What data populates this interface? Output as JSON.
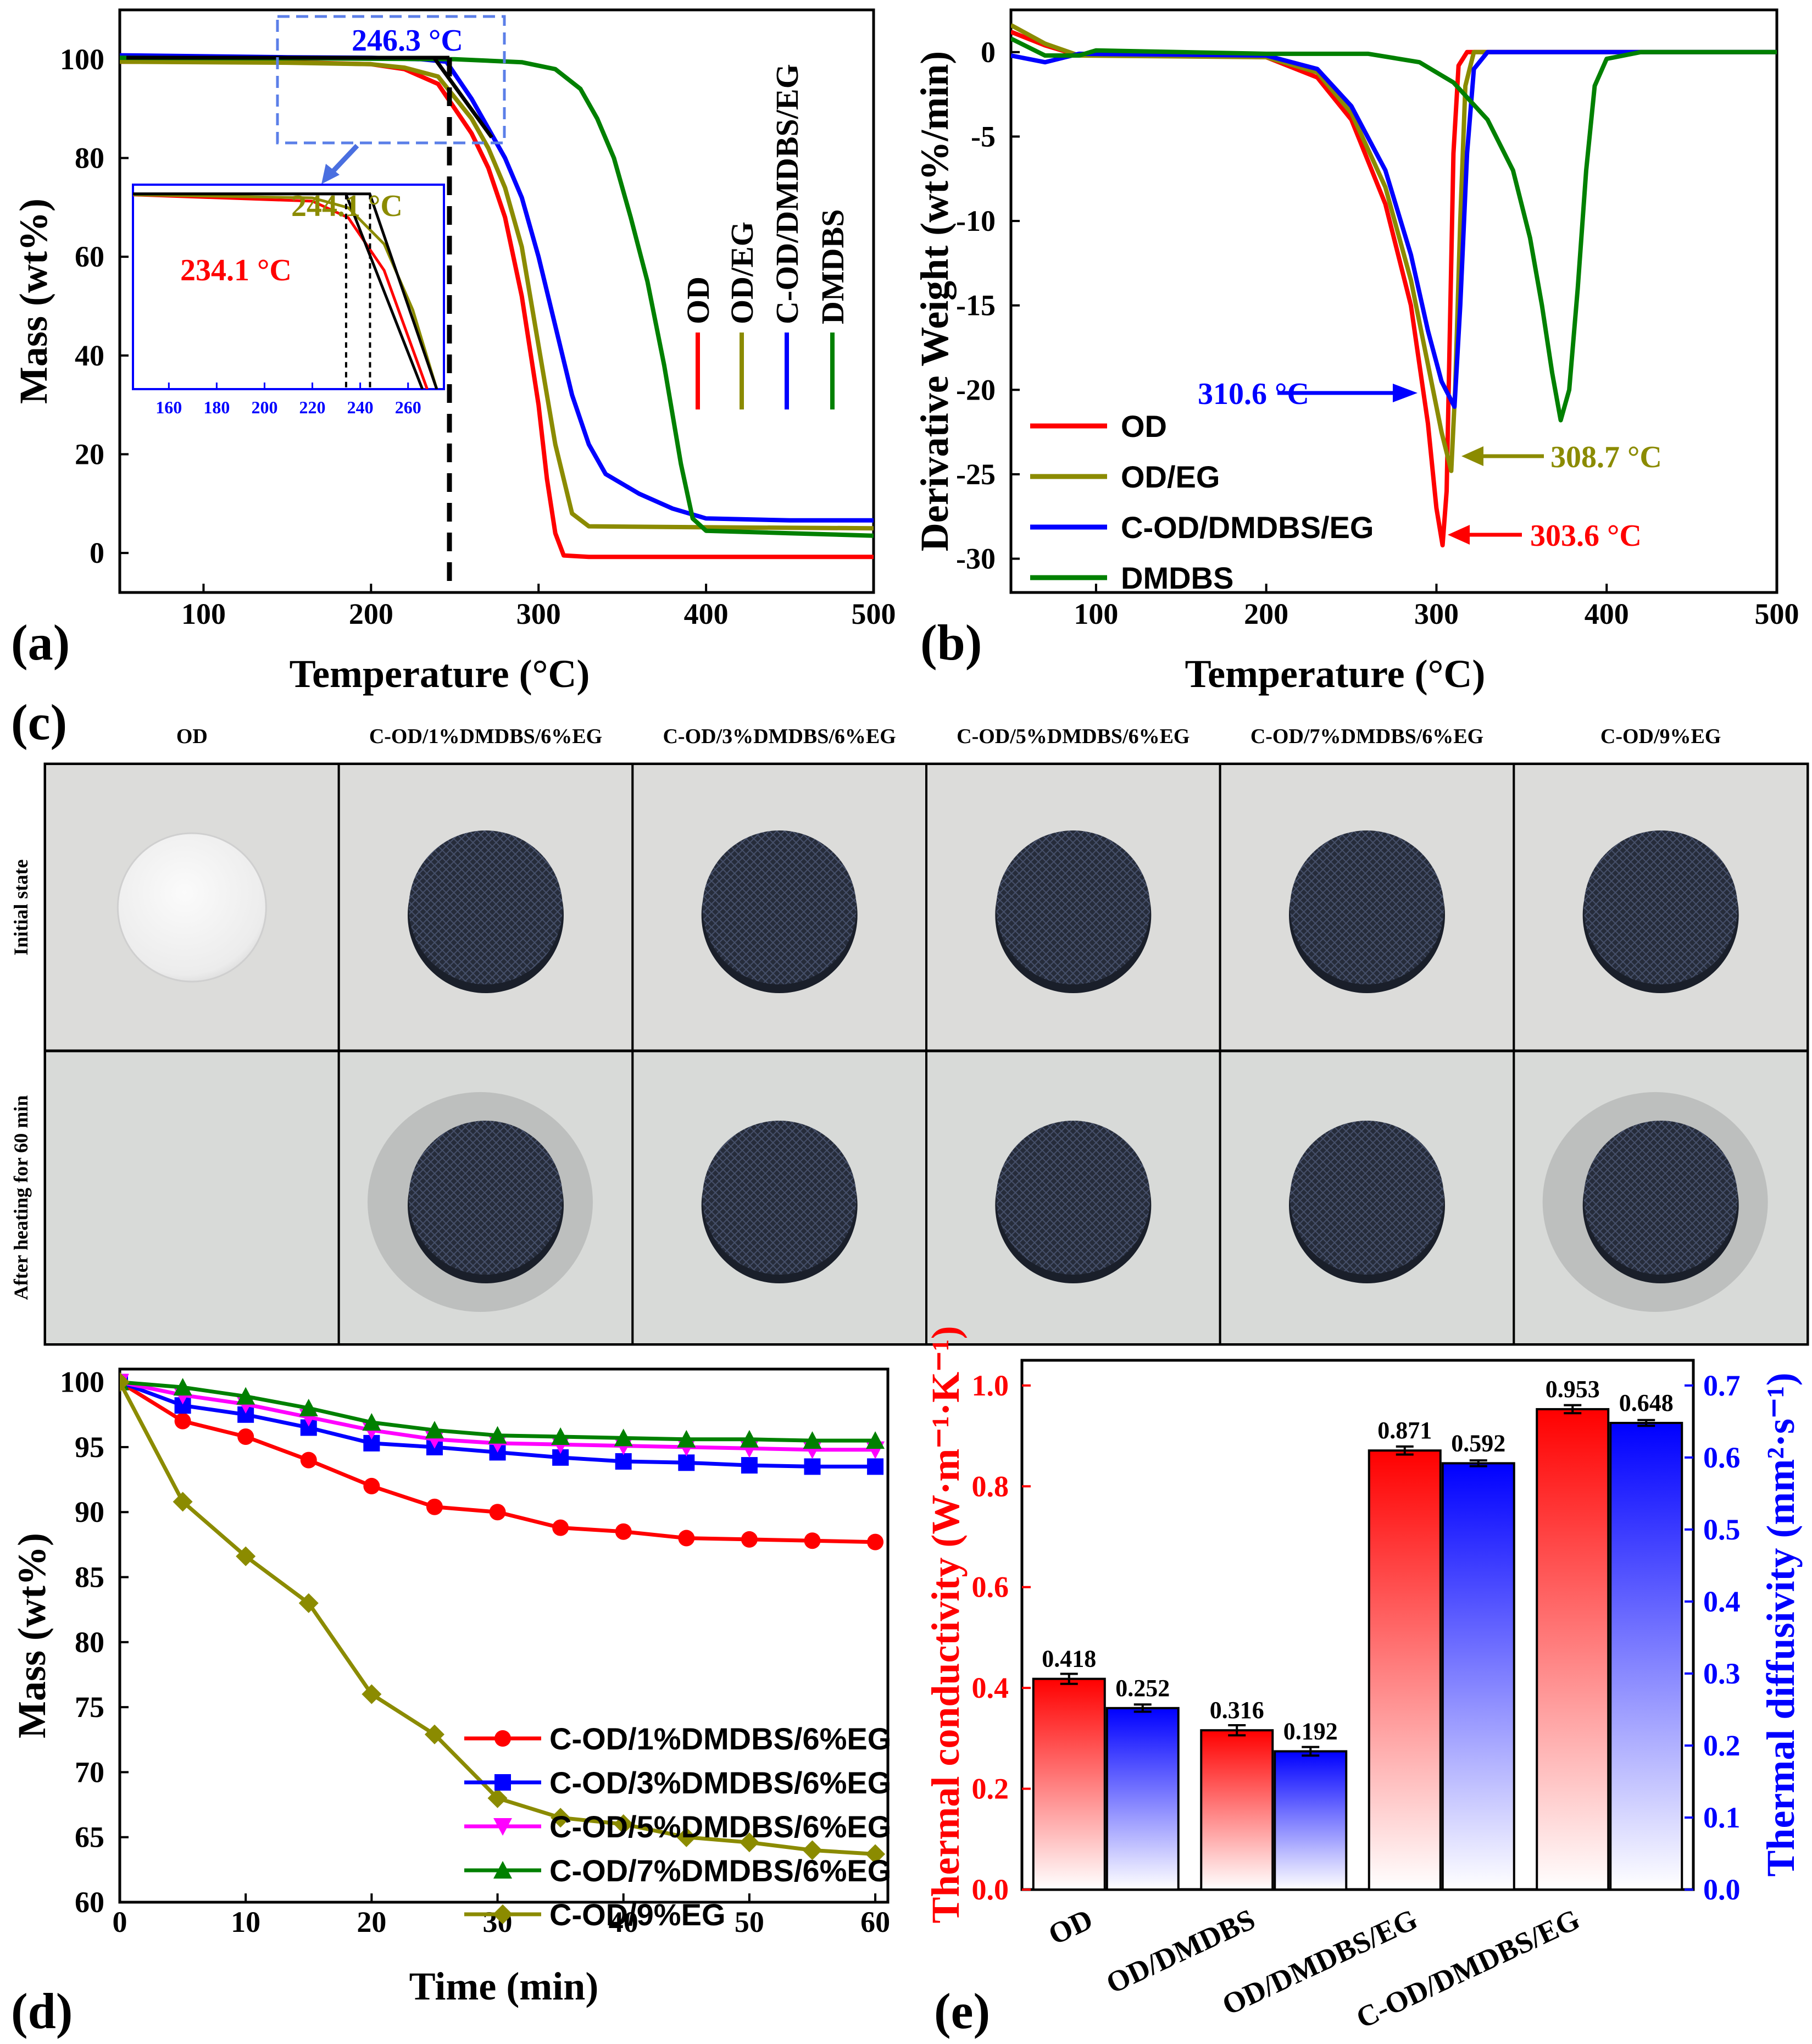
{
  "panels": {
    "a": {
      "letter": "(a)",
      "chart_data": {
        "type": "line",
        "xlabel": "Temperature (°C)",
        "ylabel": "Mass (wt%)",
        "xlim": [
          50,
          500
        ],
        "ylim": [
          -8,
          110
        ],
        "xticks": [
          100,
          200,
          300,
          400,
          500
        ],
        "yticks": [
          0,
          20,
          40,
          60,
          80,
          100
        ],
        "legend_placement": "right, rotated vertical",
        "series": [
          {
            "name": "OD",
            "color": "#ff0000",
            "points": [
              [
                50,
                99.5
              ],
              [
                150,
                99.4
              ],
              [
                200,
                99
              ],
              [
                220,
                98
              ],
              [
                240,
                95
              ],
              [
                260,
                85
              ],
              [
                270,
                78
              ],
              [
                280,
                68
              ],
              [
                290,
                52
              ],
              [
                300,
                30
              ],
              [
                305,
                15
              ],
              [
                310,
                4
              ],
              [
                315,
                -0.5
              ],
              [
                330,
                -0.8
              ],
              [
                400,
                -0.8
              ],
              [
                500,
                -0.8
              ]
            ]
          },
          {
            "name": "OD/EG",
            "color": "#8b8b00",
            "points": [
              [
                50,
                99.5
              ],
              [
                150,
                99.3
              ],
              [
                200,
                99
              ],
              [
                220,
                98.3
              ],
              [
                240,
                96.5
              ],
              [
                260,
                88
              ],
              [
                270,
                82
              ],
              [
                280,
                74
              ],
              [
                290,
                62
              ],
              [
                300,
                42
              ],
              [
                310,
                22
              ],
              [
                320,
                8
              ],
              [
                330,
                5.4
              ],
              [
                400,
                5.2
              ],
              [
                500,
                5
              ]
            ]
          },
          {
            "name": "C-OD/DMDBS/EG",
            "color": "#0000ff",
            "points": [
              [
                50,
                100.8
              ],
              [
                150,
                100.4
              ],
              [
                200,
                100.3
              ],
              [
                230,
                100
              ],
              [
                245,
                99.5
              ],
              [
                260,
                92
              ],
              [
                270,
                86
              ],
              [
                280,
                80
              ],
              [
                290,
                72
              ],
              [
                300,
                60
              ],
              [
                310,
                46
              ],
              [
                320,
                32
              ],
              [
                330,
                22
              ],
              [
                340,
                16
              ],
              [
                360,
                12
              ],
              [
                380,
                9
              ],
              [
                400,
                7
              ],
              [
                450,
                6.6
              ],
              [
                500,
                6.6
              ]
            ]
          },
          {
            "name": "DMDBS",
            "color": "#008000",
            "points": [
              [
                50,
                100.3
              ],
              [
                150,
                100.2
              ],
              [
                250,
                100
              ],
              [
                290,
                99.4
              ],
              [
                310,
                98
              ],
              [
                325,
                94
              ],
              [
                335,
                88
              ],
              [
                345,
                80
              ],
              [
                355,
                68
              ],
              [
                365,
                55
              ],
              [
                375,
                38
              ],
              [
                385,
                18
              ],
              [
                392,
                7
              ],
              [
                400,
                4.5
              ],
              [
                450,
                4
              ],
              [
                500,
                3.5
              ]
            ]
          }
        ],
        "annotations": {
          "onset_main": "246.3 °C",
          "onset_odeg": "244.1 °C",
          "onset_od": "234.1 °C"
        },
        "inset": {
          "xlim": [
            145,
            275
          ],
          "xticks": [
            160,
            180,
            200,
            220,
            240,
            260
          ]
        }
      }
    },
    "b": {
      "letter": "(b)",
      "chart_data": {
        "type": "line",
        "xlabel": "Temperature (°C)",
        "ylabel": "Derivative Weight (wt%/min)",
        "xlim": [
          50,
          500
        ],
        "ylim": [
          -32,
          2.5
        ],
        "xticks": [
          100,
          200,
          300,
          400,
          500
        ],
        "yticks": [
          0,
          -5,
          -10,
          -15,
          -20,
          -25,
          -30
        ],
        "legend_placement": "bottom-left",
        "series": [
          {
            "name": "OD",
            "color": "#ff0000",
            "points": [
              [
                50,
                1.2
              ],
              [
                70,
                0.4
              ],
              [
                90,
                -0.2
              ],
              [
                150,
                -0.2
              ],
              [
                200,
                -0.3
              ],
              [
                230,
                -1.5
              ],
              [
                250,
                -4
              ],
              [
                270,
                -9
              ],
              [
                285,
                -15
              ],
              [
                295,
                -22
              ],
              [
                300,
                -27
              ],
              [
                303.6,
                -29.2
              ],
              [
                306,
                -26
              ],
              [
                308,
                -16
              ],
              [
                310,
                -6
              ],
              [
                313,
                -0.8
              ],
              [
                318,
                0
              ],
              [
                400,
                0
              ],
              [
                500,
                0
              ]
            ]
          },
          {
            "name": "OD/EG",
            "color": "#8b8b00",
            "points": [
              [
                50,
                1.6
              ],
              [
                70,
                0.5
              ],
              [
                90,
                -0.2
              ],
              [
                200,
                -0.3
              ],
              [
                230,
                -1.2
              ],
              [
                250,
                -3.6
              ],
              [
                270,
                -8
              ],
              [
                285,
                -13.5
              ],
              [
                295,
                -18.5
              ],
              [
                303,
                -22.5
              ],
              [
                308.7,
                -24.8
              ],
              [
                311,
                -20
              ],
              [
                314,
                -10
              ],
              [
                317,
                -2
              ],
              [
                322,
                0
              ],
              [
                400,
                0
              ],
              [
                500,
                0
              ]
            ]
          },
          {
            "name": "C-OD/DMDBS/EG",
            "color": "#0000ff",
            "points": [
              [
                50,
                -0.2
              ],
              [
                70,
                -0.6
              ],
              [
                90,
                -0.1
              ],
              [
                200,
                -0.2
              ],
              [
                230,
                -1
              ],
              [
                250,
                -3.2
              ],
              [
                270,
                -7
              ],
              [
                285,
                -12
              ],
              [
                295,
                -16.5
              ],
              [
                303,
                -19.5
              ],
              [
                310.6,
                -21
              ],
              [
                314,
                -15
              ],
              [
                318,
                -6
              ],
              [
                322,
                -1
              ],
              [
                330,
                0
              ],
              [
                400,
                0
              ],
              [
                500,
                0
              ]
            ]
          },
          {
            "name": "DMDBS",
            "color": "#008000",
            "points": [
              [
                50,
                0.8
              ],
              [
                70,
                -0.2
              ],
              [
                90,
                -0.2
              ],
              [
                100,
                0.1
              ],
              [
                200,
                -0.1
              ],
              [
                260,
                -0.1
              ],
              [
                290,
                -0.6
              ],
              [
                310,
                -1.8
              ],
              [
                330,
                -4
              ],
              [
                345,
                -7
              ],
              [
                355,
                -11
              ],
              [
                362,
                -15
              ],
              [
                368,
                -19
              ],
              [
                373,
                -21.8
              ],
              [
                378,
                -20
              ],
              [
                383,
                -14
              ],
              [
                388,
                -7
              ],
              [
                393,
                -2
              ],
              [
                400,
                -0.4
              ],
              [
                420,
                0
              ],
              [
                500,
                0
              ]
            ]
          }
        ],
        "annotations": {
          "peak_c": "310.6 °C",
          "peak_eg": "308.7 °C",
          "peak_od": "303.6 °C"
        }
      }
    },
    "c": {
      "letter": "(c)",
      "columns": [
        "OD",
        "C-OD/1%DMDBS/6%EG",
        "C-OD/3%DMDBS/6%EG",
        "C-OD/5%DMDBS/6%EG",
        "C-OD/7%DMDBS/6%EG",
        "C-OD/9%EG"
      ],
      "rows": [
        "Initial state",
        "After heating for 60 min"
      ]
    },
    "d": {
      "letter": "(d)",
      "chart_data": {
        "type": "line",
        "xlabel": "Time (min)",
        "ylabel": "Mass (wt%)",
        "xlim": [
          0,
          61
        ],
        "ylim": [
          60,
          101
        ],
        "xticks": [
          0,
          10,
          20,
          30,
          40,
          50,
          60
        ],
        "yticks": [
          60,
          65,
          70,
          75,
          80,
          85,
          90,
          95,
          100
        ],
        "legend_placement": "center-right",
        "x": [
          0,
          5,
          10,
          15,
          20,
          25,
          30,
          35,
          40,
          45,
          50,
          55,
          60
        ],
        "series": [
          {
            "name": "C-OD/1%DMDBS/6%EG",
            "color": "#ff0000",
            "marker": "circle",
            "values": [
              100,
              97.0,
              95.8,
              94.0,
              92.0,
              90.4,
              90.0,
              88.8,
              88.5,
              88.0,
              87.9,
              87.8,
              87.7
            ]
          },
          {
            "name": "C-OD/3%DMDBS/6%EG",
            "color": "#0000ff",
            "marker": "square",
            "values": [
              100,
              98.2,
              97.5,
              96.5,
              95.3,
              95.0,
              94.6,
              94.2,
              93.9,
              93.8,
              93.6,
              93.5,
              93.5
            ]
          },
          {
            "name": "C-OD/5%DMDBS/6%EG",
            "color": "#ff00ff",
            "marker": "triangle-down",
            "values": [
              100,
              99.0,
              98.3,
              97.3,
              96.3,
              95.6,
              95.3,
              95.2,
              95.1,
              95.0,
              94.9,
              94.8,
              94.8
            ]
          },
          {
            "name": "C-OD/7%DMDBS/6%EG",
            "color": "#008000",
            "marker": "triangle-up",
            "values": [
              100,
              99.6,
              98.9,
              98.0,
              96.9,
              96.3,
              95.9,
              95.8,
              95.7,
              95.6,
              95.6,
              95.5,
              95.5
            ]
          },
          {
            "name": "C-OD/9%EG",
            "color": "#8b8b00",
            "marker": "diamond",
            "values": [
              100,
              90.8,
              86.6,
              83.0,
              76.0,
              72.9,
              68.0,
              66.5,
              66.0,
              65.0,
              64.6,
              64.0,
              63.7
            ]
          }
        ]
      }
    },
    "e": {
      "letter": "(e)",
      "chart_data": {
        "type": "bar",
        "categories": [
          "OD",
          "OD/DMDBS",
          "OD/DMDBS/EG",
          "C-OD/DMDBS/EG"
        ],
        "ylabel_left": "Thermal conductivity (W·m⁻¹·K⁻¹)",
        "ylabel_right": "Thermal diffusivity (mm²·s⁻¹)",
        "ylim_left": [
          0,
          1.05
        ],
        "ylim_right": [
          0,
          0.735
        ],
        "yticks_left": [
          "0.0",
          "0.2",
          "0.4",
          "0.6",
          "0.8",
          "1.0"
        ],
        "yticks_right": [
          "0.0",
          "0.1",
          "0.2",
          "0.3",
          "0.4",
          "0.5",
          "0.6",
          "0.7"
        ],
        "series": [
          {
            "name": "Thermal conductivity",
            "axis": "left",
            "color": "#ff0000",
            "values": [
              0.418,
              0.316,
              0.871,
              0.953
            ],
            "labels": [
              "0.418",
              "0.316",
              "0.871",
              "0.953"
            ],
            "errors": [
              0.01,
              0.01,
              0.008,
              0.008
            ]
          },
          {
            "name": "Thermal diffusivity",
            "axis": "right",
            "color": "#0000ff",
            "values": [
              0.252,
              0.192,
              0.592,
              0.648
            ],
            "labels": [
              "0.252",
              "0.192",
              "0.592",
              "0.648"
            ],
            "errors": [
              0.005,
              0.006,
              0.004,
              0.004
            ]
          }
        ]
      }
    }
  }
}
